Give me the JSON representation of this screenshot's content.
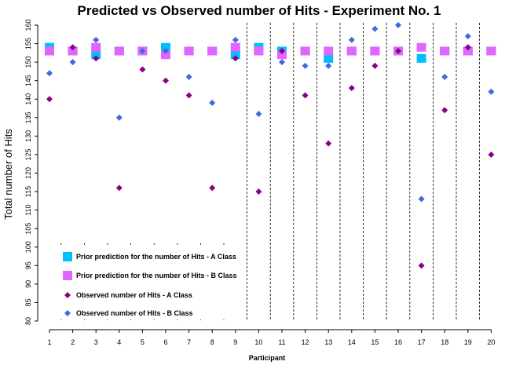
{
  "chart_data": {
    "type": "scatter",
    "title": "Predicted vs Observed number of Hits - Experiment No. 1",
    "xlabel": "Participant",
    "ylabel": "Total number of Hits",
    "x": [
      1,
      2,
      3,
      4,
      5,
      6,
      7,
      8,
      9,
      10,
      11,
      12,
      13,
      14,
      15,
      16,
      17,
      18,
      19,
      20
    ],
    "xlim": [
      1,
      20
    ],
    "ylim": [
      80,
      160
    ],
    "yticks": [
      80,
      85,
      90,
      95,
      100,
      105,
      110,
      115,
      120,
      125,
      130,
      135,
      140,
      145,
      150,
      155,
      160
    ],
    "grid": "vertical dashed separators between participants",
    "legend_position": "bottom-left",
    "series": [
      {
        "name": "Prior prediction for the number of Hits - A Class",
        "marker": "square",
        "color": "#00bfff",
        "values": [
          154,
          153,
          152,
          153,
          153,
          154,
          153,
          153,
          152,
          154,
          153,
          153,
          151,
          153,
          153,
          153,
          151,
          153,
          153,
          153
        ]
      },
      {
        "name": "Prior prediction for the number of Hits - B Class",
        "marker": "square",
        "color": "#e066ff",
        "values": [
          153,
          153,
          154,
          153,
          153,
          152,
          153,
          153,
          154,
          153,
          152,
          153,
          153,
          153,
          153,
          153,
          154,
          153,
          153,
          153
        ]
      },
      {
        "name": "Observed number of Hits - A Class",
        "marker": "diamond",
        "color": "#8b008b",
        "values": [
          140,
          154,
          151,
          116,
          148,
          145,
          141,
          116,
          151,
          115,
          153,
          141,
          128,
          143,
          149,
          153,
          95,
          137,
          154,
          125
        ]
      },
      {
        "name": "Observed number of Hits - B Class",
        "marker": "diamond",
        "color": "#4169e1",
        "values": [
          147,
          150,
          156,
          135,
          153,
          153,
          146,
          139,
          156,
          136,
          150,
          149,
          149,
          156,
          159,
          160,
          113,
          146,
          157,
          142
        ]
      }
    ]
  }
}
